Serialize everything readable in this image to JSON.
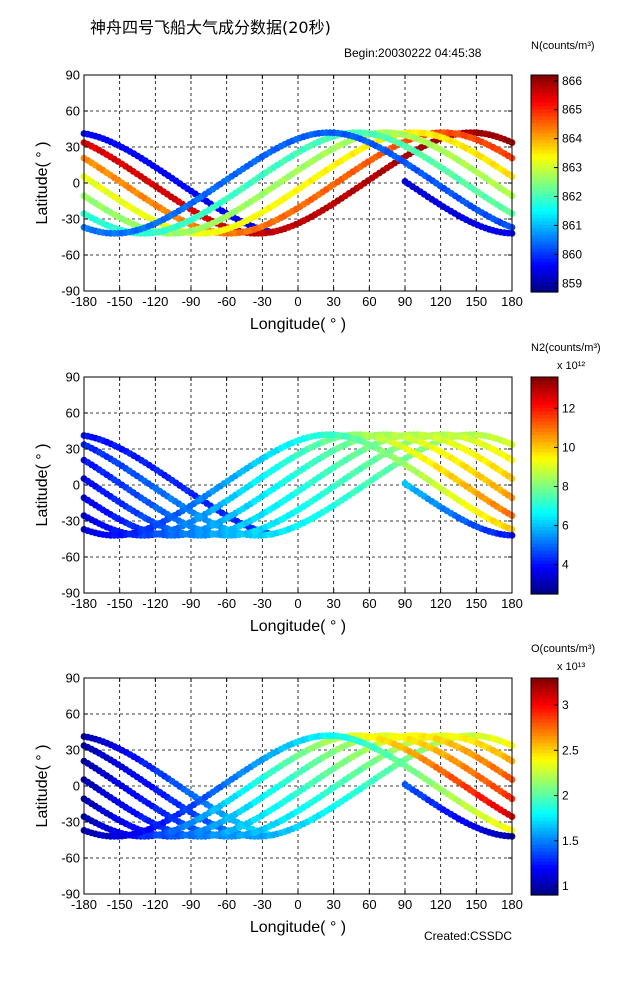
{
  "title": "神舟四号飞船大气成分数据(20秒)",
  "begin": "Begin:20030222  04:45:38",
  "created": "Created:CSSDC",
  "chart_data": [
    {
      "type": "scatter",
      "xlabel": "Longitude( ° )",
      "ylabel": "Latitude( ° )",
      "xlim": [
        -180,
        180
      ],
      "ylim": [
        -90,
        90
      ],
      "xticks": [
        -180,
        -150,
        -120,
        -90,
        -60,
        -30,
        0,
        30,
        60,
        90,
        120,
        150,
        180
      ],
      "yticks": [
        -90,
        -60,
        -30,
        0,
        30,
        60,
        90
      ],
      "grid": true,
      "colorbar": {
        "label": "N(counts/m³)",
        "exponent": "",
        "min": 858.7,
        "max": 866.2,
        "ticks": [
          859,
          860,
          861,
          862,
          863,
          864,
          865,
          866
        ]
      },
      "tracks": [
        {
          "lon_start": -180,
          "lon_end": -22,
          "v_start": 859.6,
          "v_end": 859.6
        },
        {
          "lon_start": -180,
          "lon_end": 180,
          "v_start": 865.5,
          "v_end": 866.0
        },
        {
          "lon_start": -180,
          "lon_end": 180,
          "v_start": 864.2,
          "v_end": 864.8
        },
        {
          "lon_start": -180,
          "lon_end": 180,
          "v_start": 863.2,
          "v_end": 863.6
        },
        {
          "lon_start": -180,
          "lon_end": 180,
          "v_start": 862.6,
          "v_end": 862.8
        },
        {
          "lon_start": -180,
          "lon_end": 180,
          "v_start": 861.8,
          "v_end": 862.2
        },
        {
          "lon_start": -180,
          "lon_end": 180,
          "v_start": 860.5,
          "v_end": 860.2
        },
        {
          "lon_start": 90,
          "lon_end": 180,
          "v_start": 859.3,
          "v_end": 859.5
        }
      ]
    },
    {
      "type": "scatter",
      "xlabel": "Longitude( ° )",
      "ylabel": "Latitude( ° )",
      "xlim": [
        -180,
        180
      ],
      "ylim": [
        -90,
        90
      ],
      "xticks": [
        -180,
        -150,
        -120,
        -90,
        -60,
        -30,
        0,
        30,
        60,
        90,
        120,
        150,
        180
      ],
      "yticks": [
        -90,
        -60,
        -30,
        0,
        30,
        60,
        90
      ],
      "grid": true,
      "colorbar": {
        "label": "N2(counts/m³)",
        "exponent": "x 10¹²",
        "min": 2.5,
        "max": 13.6,
        "ticks": [
          4,
          6,
          8,
          10,
          12
        ]
      },
      "tracks": [
        {
          "lon_start": -180,
          "lon_end": -22,
          "v_start": 4.0,
          "v_end": 4.5
        },
        {
          "lon_start": -180,
          "lon_end": 180,
          "v_start": 4.2,
          "v_end": 9.0
        },
        {
          "lon_start": -180,
          "lon_end": 180,
          "v_start": 4.0,
          "v_end": 9.5
        },
        {
          "lon_start": -180,
          "lon_end": 180,
          "v_start": 3.8,
          "v_end": 10.0
        },
        {
          "lon_start": -180,
          "lon_end": 180,
          "v_start": 3.6,
          "v_end": 10.5
        },
        {
          "lon_start": -180,
          "lon_end": 180,
          "v_start": 3.5,
          "v_end": 11.0
        },
        {
          "lon_start": -180,
          "lon_end": 180,
          "v_start": 3.5,
          "v_end": 10.0
        },
        {
          "lon_start": 90,
          "lon_end": 180,
          "v_start": 6.0,
          "v_end": 4.0
        }
      ]
    },
    {
      "type": "scatter",
      "xlabel": "Longitude( ° )",
      "ylabel": "Latitude( ° )",
      "xlim": [
        -180,
        180
      ],
      "ylim": [
        -90,
        90
      ],
      "xticks": [
        -180,
        -150,
        -120,
        -90,
        -60,
        -30,
        0,
        30,
        60,
        90,
        120,
        150,
        180
      ],
      "yticks": [
        -90,
        -60,
        -30,
        0,
        30,
        60,
        90
      ],
      "grid": true,
      "colorbar": {
        "label": "O(counts/m³)",
        "exponent": "x 10¹³",
        "min": 0.9,
        "max": 3.3,
        "ticks": [
          1,
          1.5,
          2,
          2.5,
          3
        ]
      },
      "tracks": [
        {
          "lon_start": -180,
          "lon_end": -22,
          "v_start": 1.0,
          "v_end": 1.8
        },
        {
          "lon_start": -180,
          "lon_end": 180,
          "v_start": 1.0,
          "v_end": 2.4
        },
        {
          "lon_start": -180,
          "lon_end": 180,
          "v_start": 1.0,
          "v_end": 2.6
        },
        {
          "lon_start": -180,
          "lon_end": 180,
          "v_start": 1.0,
          "v_end": 2.8
        },
        {
          "lon_start": -180,
          "lon_end": 180,
          "v_start": 1.0,
          "v_end": 2.9
        },
        {
          "lon_start": -180,
          "lon_end": 180,
          "v_start": 1.0,
          "v_end": 3.1
        },
        {
          "lon_start": -180,
          "lon_end": 180,
          "v_start": 1.0,
          "v_end": 2.4
        },
        {
          "lon_start": 90,
          "lon_end": 180,
          "v_start": 1.4,
          "v_end": 1.0
        }
      ]
    }
  ]
}
